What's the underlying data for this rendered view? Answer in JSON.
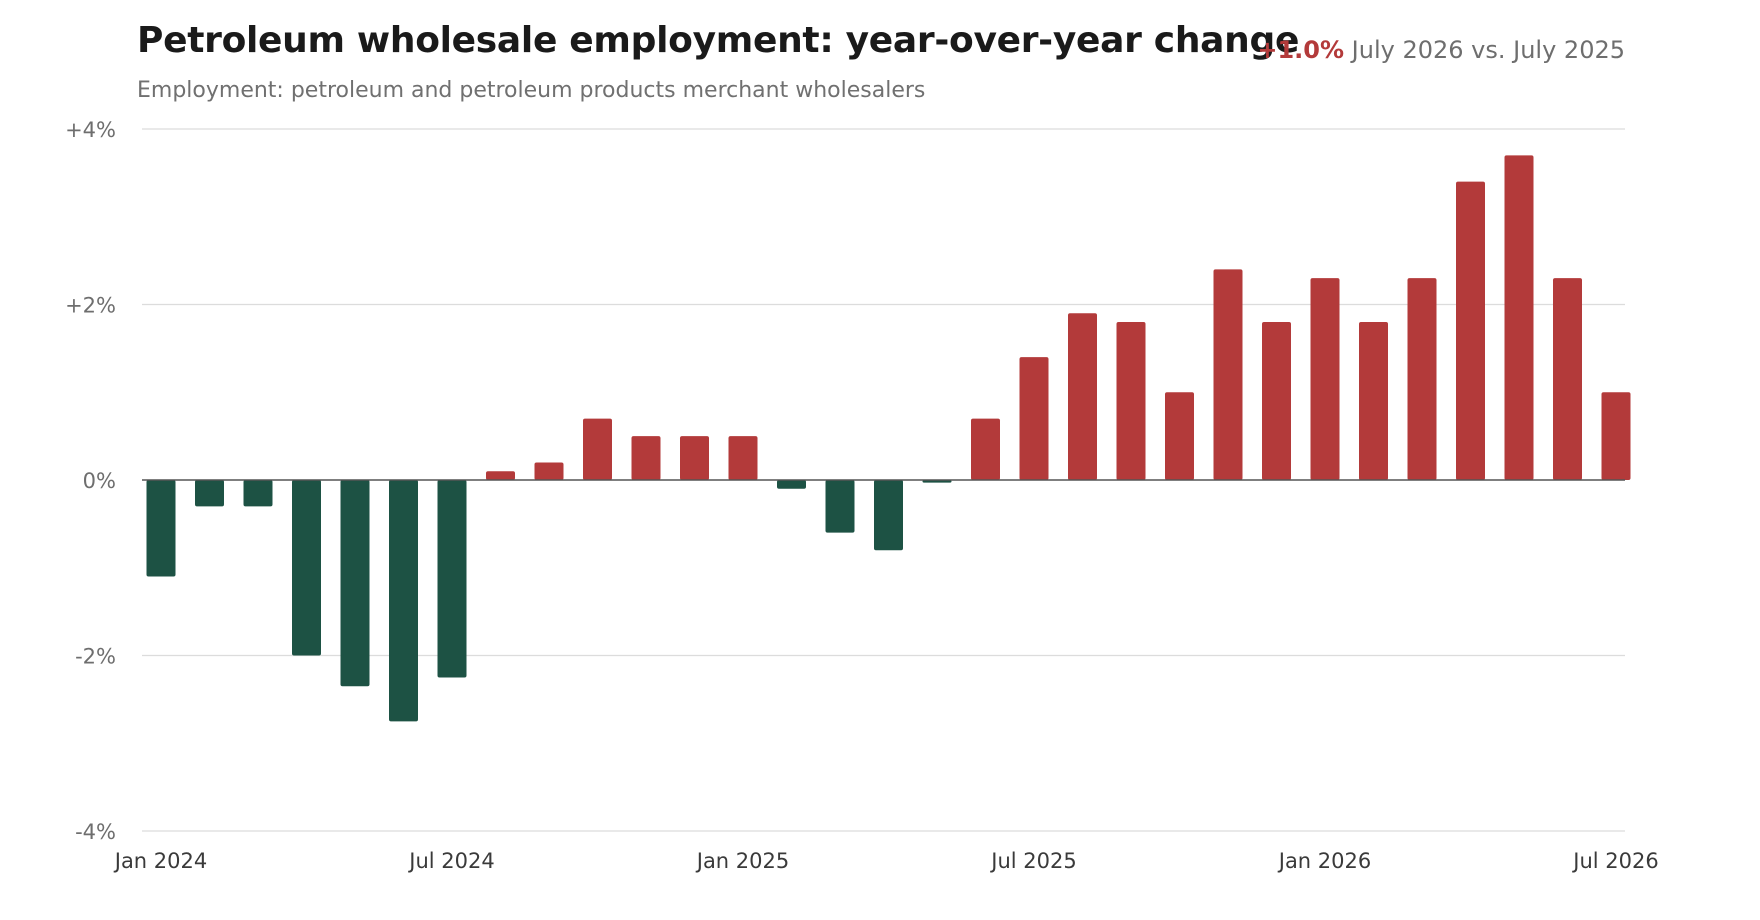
{
  "header": {
    "title": "Petroleum wholesale employment: year-over-year change",
    "subtitle": "Employment: petroleum and petroleum products merchant wholesalers",
    "headline_value": "+1.0%",
    "headline_text": "July 2026 vs. July 2025"
  },
  "colors": {
    "positive": "#b33a3a",
    "negative": "#1d5244",
    "gridline": "#dcdcdc",
    "zero_line": "#555555",
    "tick_text": "#6e6e6e",
    "axis_text": "#3a3a3a"
  },
  "chart_data": {
    "type": "bar",
    "title": "Petroleum wholesale employment: year-over-year change",
    "subtitle": "Employment: petroleum and petroleum products merchant wholesalers",
    "xlabel": "",
    "ylabel": "",
    "ylim": [
      -4,
      4
    ],
    "yticks": [
      {
        "value": 4,
        "label": "+4%"
      },
      {
        "value": 2,
        "label": "+2%"
      },
      {
        "value": 0,
        "label": "0%"
      },
      {
        "value": -2,
        "label": "-2%"
      },
      {
        "value": -4,
        "label": "-4%"
      }
    ],
    "xticks": [
      {
        "index": 0,
        "label": "Jan 2024"
      },
      {
        "index": 6,
        "label": "Jul 2024"
      },
      {
        "index": 12,
        "label": "Jan 2025"
      },
      {
        "index": 18,
        "label": "Jul 2025"
      },
      {
        "index": 24,
        "label": "Jan 2026"
      },
      {
        "index": 30,
        "label": "Jul 2026"
      }
    ],
    "grid": true,
    "categories": [
      "Jan 2024",
      "Feb 2024",
      "Mar 2024",
      "Apr 2024",
      "May 2024",
      "Jun 2024",
      "Jul 2024",
      "Aug 2024",
      "Sep 2024",
      "Oct 2024",
      "Nov 2024",
      "Dec 2024",
      "Jan 2025",
      "Feb 2025",
      "Mar 2025",
      "Apr 2025",
      "May 2025",
      "Jun 2025",
      "Jul 2025",
      "Aug 2025",
      "Sep 2025",
      "Oct 2025",
      "Nov 2025",
      "Dec 2025",
      "Jan 2026",
      "Feb 2026",
      "Mar 2026",
      "Apr 2026",
      "May 2026",
      "Jun 2026",
      "Jul 2026"
    ],
    "values": [
      -1.1,
      -0.3,
      -0.3,
      -2.0,
      -2.35,
      -2.75,
      -2.25,
      0.1,
      0.2,
      0.7,
      0.5,
      0.5,
      0.5,
      -0.1,
      -0.6,
      -0.8,
      -0.03,
      0.7,
      1.4,
      1.9,
      1.8,
      1.0,
      2.4,
      1.8,
      2.3,
      1.8,
      2.3,
      3.4,
      3.7,
      2.3,
      1.0
    ]
  }
}
